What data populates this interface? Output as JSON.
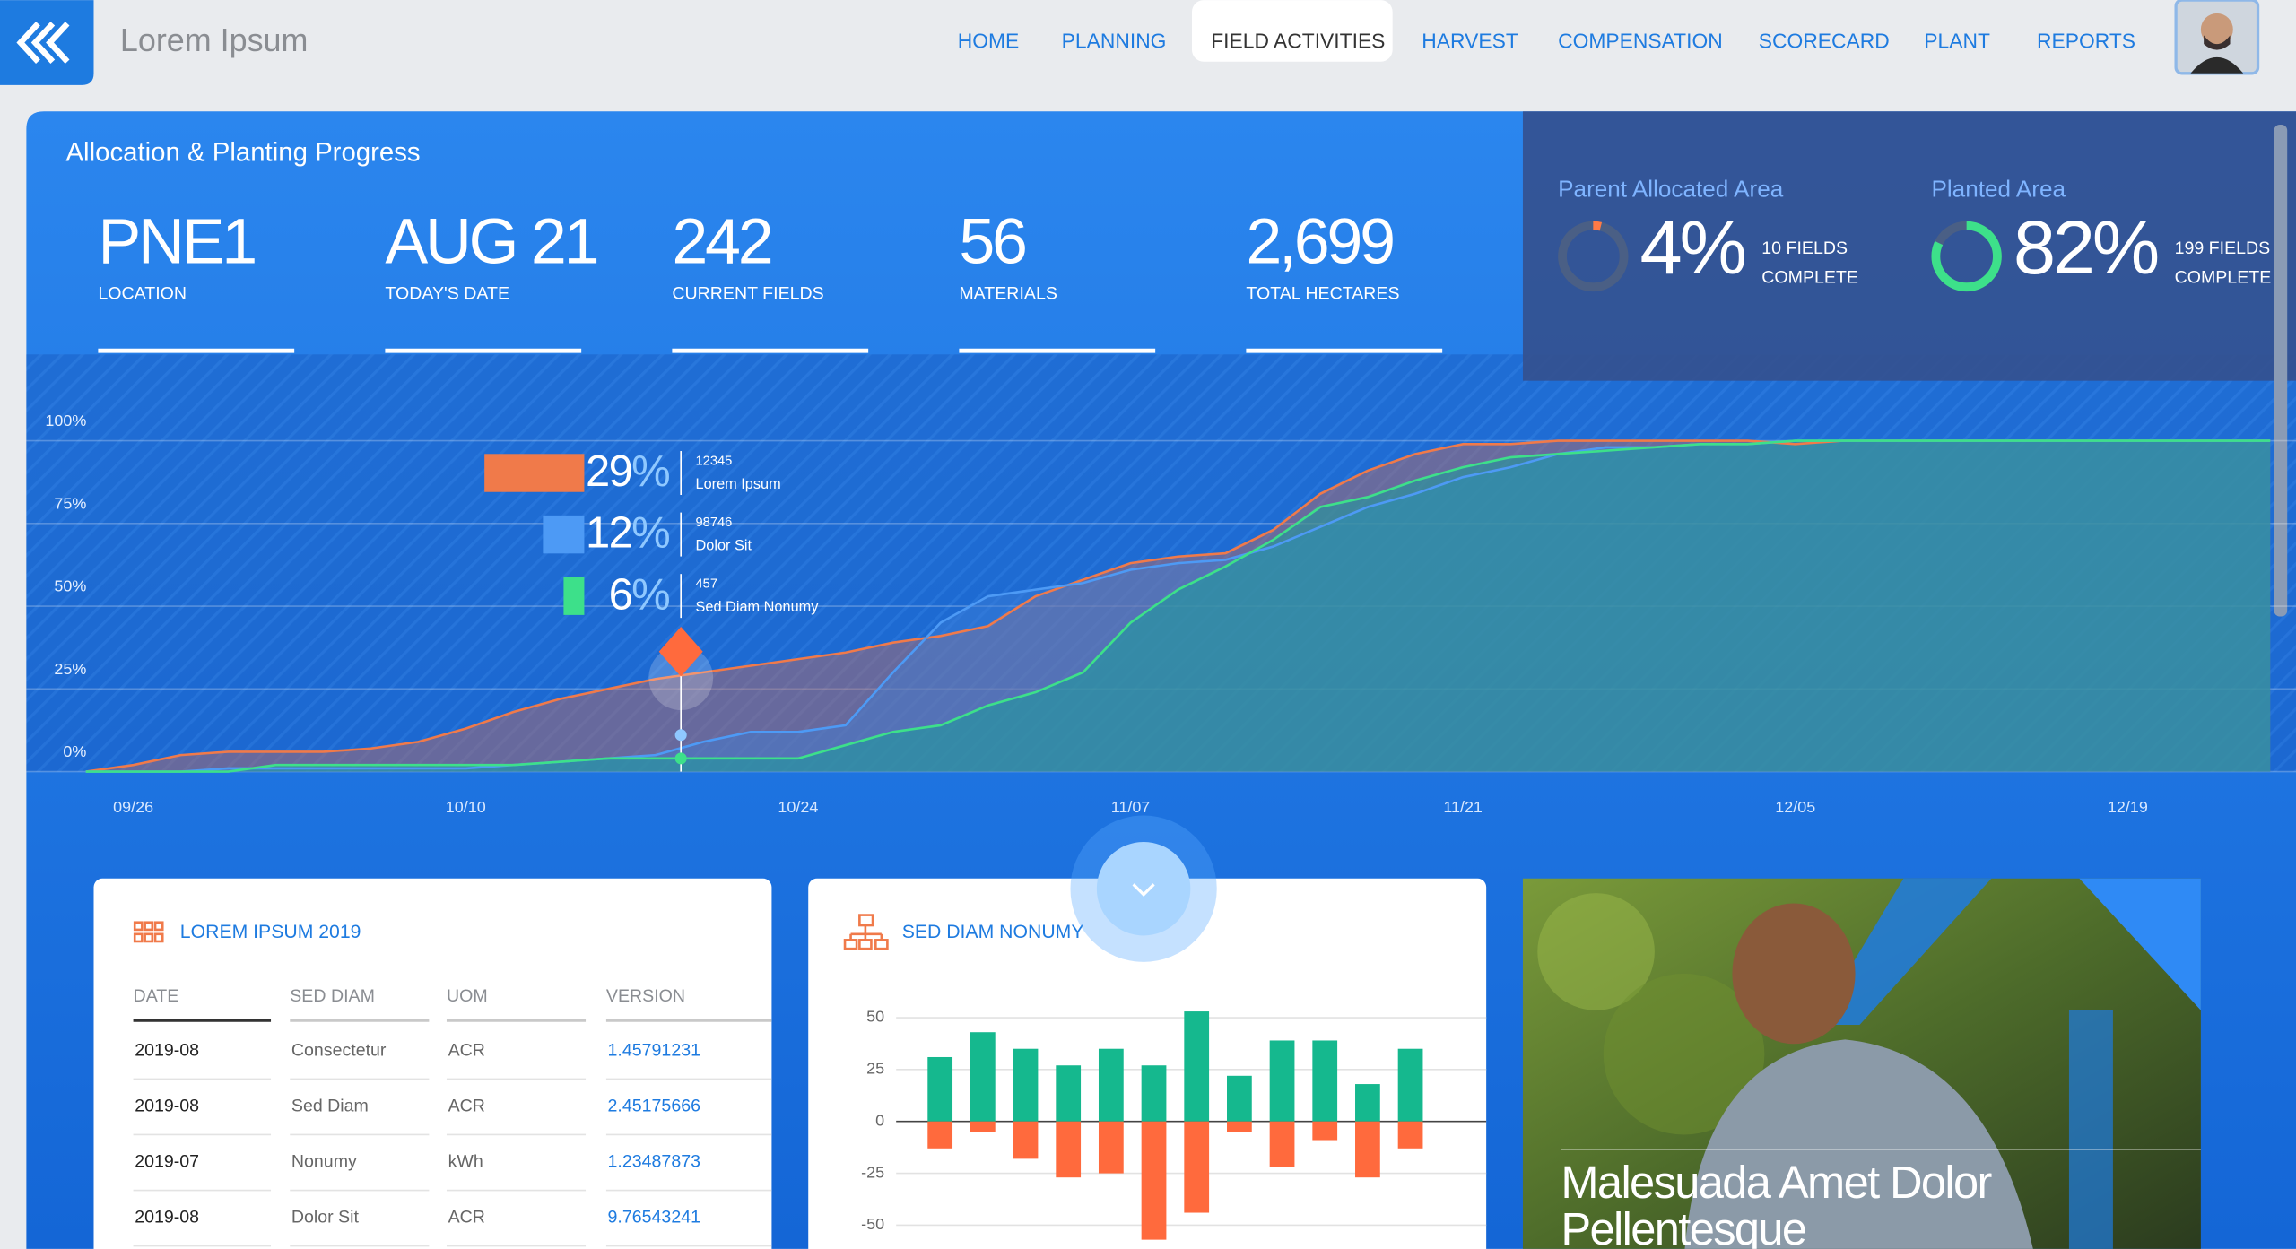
{
  "header": {
    "brand": "Lorem Ipsum",
    "nav": [
      "HOME",
      "PLANNING",
      "FIELD ACTIVITIES",
      "HARVEST",
      "COMPENSATION",
      "SCORECARD",
      "PLANT",
      "REPORTS"
    ]
  },
  "summary": {
    "title": "Allocation & Planting Progress",
    "stats": [
      {
        "value": "PNE1",
        "label": "LOCATION"
      },
      {
        "value": "AUG 21",
        "label": "TODAY'S DATE"
      },
      {
        "value": 242,
        "label": "CURRENT FIELDS"
      },
      {
        "value": 56,
        "label": "MATERIALS"
      },
      {
        "value": "2,699",
        "label": "TOTAL HECTARES"
      }
    ]
  },
  "gauges": [
    {
      "title": "Parent Allocated Area",
      "value": 4,
      "value_label": "4%",
      "note": [
        "10 FIELDS",
        "COMPLETE"
      ],
      "color": "#ff7a45"
    },
    {
      "title": "Planted Area",
      "value": 82,
      "value_label": "82%",
      "note": [
        "199 FIELDS",
        "COMPLETE"
      ],
      "color": "#3de08a"
    }
  ],
  "chart_data": [
    {
      "type": "area",
      "categories": [
        null,
        "09/26",
        null,
        null,
        null,
        null,
        null,
        null,
        "10/10",
        null,
        null,
        null,
        null,
        null,
        null,
        "10/24",
        null,
        null,
        null,
        null,
        null,
        null,
        "11/07",
        null,
        null,
        null,
        null,
        null,
        null,
        "11/21",
        null,
        null,
        null,
        null,
        null,
        null,
        "12/05",
        null,
        null,
        null,
        null,
        null,
        null,
        "12/19",
        null,
        null,
        null
      ],
      "series": [
        {
          "name": "Lorem Ipsum",
          "color": "#f07a4a",
          "values": [
            0,
            2,
            5,
            6,
            6,
            6,
            7,
            9,
            13,
            18,
            22,
            25,
            28,
            30,
            32,
            34,
            36,
            39,
            41,
            44,
            53,
            58,
            63,
            65,
            66,
            73,
            84,
            91,
            96,
            99,
            99,
            100,
            100,
            100,
            100,
            100,
            99,
            100,
            100,
            100,
            100,
            100,
            100,
            100,
            100,
            100,
            100
          ]
        },
        {
          "name": "Dolor Sit",
          "color": "#4d9af5",
          "values": [
            0,
            0,
            0,
            1,
            1,
            1,
            1,
            1,
            1,
            2,
            3,
            4,
            5,
            9,
            12,
            12,
            14,
            30,
            45,
            53,
            55,
            57,
            61,
            63,
            64,
            68,
            74,
            80,
            84,
            89,
            92,
            96,
            98,
            98,
            99,
            99,
            100,
            100,
            100,
            100,
            100,
            100,
            100,
            100,
            100,
            100,
            100
          ]
        },
        {
          "name": "Sed Diam Nonumy",
          "color": "#3de08a",
          "values": [
            0,
            0,
            0,
            0,
            2,
            2,
            2,
            2,
            2,
            2,
            3,
            4,
            4,
            4,
            4,
            4,
            8,
            12,
            14,
            20,
            24,
            30,
            45,
            55,
            62,
            70,
            80,
            83,
            88,
            92,
            95,
            96,
            97,
            98,
            99,
            99,
            100,
            100,
            100,
            100,
            100,
            100,
            100,
            100,
            100,
            100,
            100
          ]
        }
      ],
      "ylim": [
        0,
        100
      ],
      "yticks": [
        {
          "value": 0,
          "label": "0%"
        },
        {
          "value": 25,
          "label": "25%"
        },
        {
          "value": 50,
          "label": "50%"
        },
        {
          "value": 75,
          "label": "75%"
        },
        {
          "value": 100,
          "label": "100%"
        }
      ],
      "grid": true,
      "tooltip": [
        {
          "value": 29,
          "unit": "%",
          "count": 12345
        },
        {
          "value": 12,
          "unit": "%",
          "count": 98746
        },
        {
          "value": 6,
          "unit": "%",
          "count": 457
        }
      ]
    },
    {
      "type": "bar",
      "title": "SED DIAM NONUMY",
      "categories": [
        null,
        null,
        null,
        null,
        null,
        null,
        null,
        null,
        null,
        null,
        null,
        null
      ],
      "series": [
        {
          "color": "#15b88e",
          "values": [
            31,
            43,
            35,
            27,
            35,
            27,
            53,
            22,
            39,
            39,
            18,
            35
          ]
        },
        {
          "color": "#ff6a3d",
          "values": [
            -13,
            -5,
            -18,
            -27,
            -25,
            -57,
            -44,
            -5,
            -22,
            -9,
            -27,
            -13
          ]
        }
      ],
      "ylim": [
        -60,
        55
      ],
      "yticks": [
        50,
        25,
        0,
        -25,
        -50
      ],
      "grid": true
    }
  ],
  "table": {
    "title": "LOREM IPSUM 2019",
    "columns": [
      "DATE",
      "SED DIAM",
      "UOM",
      "VERSION"
    ],
    "rows": [
      [
        "2019-08",
        "Consectetur",
        "ACR",
        "1.45791231"
      ],
      [
        "2019-08",
        "Sed Diam",
        "ACR",
        "2.45175666"
      ],
      [
        "2019-07",
        "Nonumy",
        "kWh",
        "1.23487873"
      ],
      [
        "2019-08",
        "Dolor Sit",
        "ACR",
        "9.76543241"
      ]
    ]
  },
  "feature": {
    "caption": [
      "Malesuada Amet Dolor",
      "Pellentesque"
    ]
  }
}
